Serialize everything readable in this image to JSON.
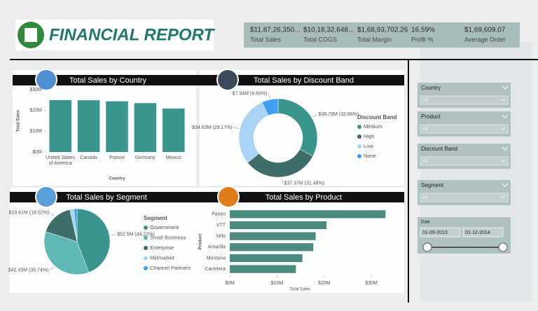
{
  "header": {
    "title": "FINANCIAL REPORT"
  },
  "kpis": [
    {
      "value": "$11,87,26,350...",
      "label": "Total Sales"
    },
    {
      "value": "$10,18,32,648...",
      "label": "Total COGS"
    },
    {
      "value": "$1,68,93,702.26",
      "label": "Total Margin"
    },
    {
      "value": "16.59%",
      "label": "Profit %"
    },
    {
      "value": "$1,69,609.07",
      "label": "Average Order"
    }
  ],
  "chart_data": [
    {
      "type": "bar",
      "title": "Total Sales by Country",
      "categories": [
        "United States of America",
        "Canada",
        "France",
        "Germany",
        "Mexico"
      ],
      "values": [
        25,
        24.9,
        24.4,
        23.5,
        20.9
      ],
      "color": "#3a968c",
      "ylim": [
        0,
        30
      ],
      "yticks": [
        {
          "value": 0,
          "label": "$0M"
        },
        {
          "value": 10,
          "label": "$10M"
        },
        {
          "value": 20,
          "label": "$20M"
        },
        {
          "value": 30,
          "label": "$30M"
        }
      ],
      "ylabel": "Total Sales",
      "xlabel": "Country",
      "grid": false
    },
    {
      "type": "donut",
      "title": "Total Sales by Discount Band",
      "legend_title": "Discount Band",
      "categories": [
        "Medium",
        "High",
        "Low",
        "None"
      ],
      "values": [
        38.78,
        37.37,
        34.63,
        7.94
      ],
      "value_labels": [
        "$38.78M (32.66%)",
        "$37.37M (31.48%)",
        "$34.63M (29.17%)",
        "$7.94M (6.69%)"
      ],
      "colors": [
        "#3a968c",
        "#3d6e69",
        "#a9d4f5",
        "#3fa0f0"
      ]
    },
    {
      "type": "pie",
      "title": "Total Sales by Segment",
      "legend_title": "Segment",
      "categories": [
        "Government",
        "Small Business",
        "Enterprise",
        "Midmarket",
        "Channel Partners"
      ],
      "values": [
        52.5,
        42.43,
        19.61,
        2.4,
        1.8
      ],
      "value_labels": [
        "$52.5M (44.22%)",
        "$42.43M (35.74%)",
        "$19.61M (16.52%)",
        null,
        null
      ],
      "colors": [
        "#3a968c",
        "#5fb8b3",
        "#3d6e69",
        "#a9d4f5",
        "#3fa0f0"
      ]
    },
    {
      "type": "bar",
      "orientation": "horizontal",
      "title": "Total Sales by Product",
      "categories": [
        "Paseo",
        "VTT",
        "Velo",
        "Amarilla",
        "Montana",
        "Carretera"
      ],
      "values": [
        33,
        20.5,
        18.2,
        17.7,
        15.4,
        14
      ],
      "color": "#4a8a80",
      "xlim": [
        0,
        34
      ],
      "xticks": [
        {
          "value": 0,
          "label": "$0M"
        },
        {
          "value": 10,
          "label": "$10M"
        },
        {
          "value": 20,
          "label": "$20M"
        },
        {
          "value": 30,
          "label": "$30M"
        }
      ],
      "ylabel": "Product",
      "xlabel": "Total Sales",
      "grid": false
    }
  ],
  "slicers": [
    {
      "label": "Country",
      "value": "All"
    },
    {
      "label": "Product",
      "value": "All"
    },
    {
      "label": "Discount Band",
      "value": "All"
    },
    {
      "label": "Segment",
      "value": "All"
    },
    {
      "label": "Date",
      "start": "01-09-2013",
      "end": "01-12-2014"
    }
  ]
}
